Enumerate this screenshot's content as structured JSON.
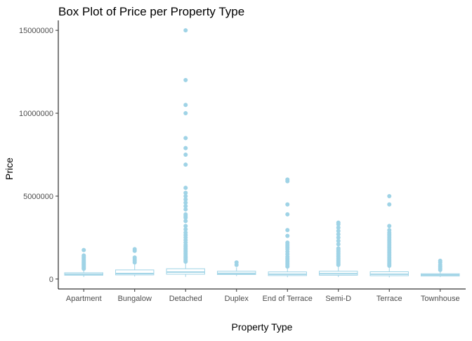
{
  "chart_data": {
    "type": "box",
    "title": "Box Plot of Price per Property Type",
    "xlabel": "Property Type",
    "ylabel": "Price",
    "ylim": [
      -600000,
      15600000
    ],
    "yticks": [
      0,
      5000000,
      10000000,
      15000000
    ],
    "ytick_labels": [
      "0",
      "5000000",
      "10000000",
      "15000000"
    ],
    "grid": false,
    "color": "#9fd3e6",
    "categories": [
      "Apartment",
      "Bungalow",
      "Detached",
      "Duplex",
      "End of Terrace",
      "Semi-D",
      "Terrace",
      "Townhouse"
    ],
    "boxes": [
      {
        "category": "Apartment",
        "whisker_low": 120000,
        "q1": 230000,
        "median": 290000,
        "q3": 380000,
        "whisker_high": 600000,
        "outliers": [
          620000,
          680000,
          740000,
          800000,
          860000,
          920000,
          980000,
          1050000,
          1120000,
          1200000,
          1280000,
          1350000,
          1420000,
          1750000
        ]
      },
      {
        "category": "Bungalow",
        "whisker_low": 150000,
        "q1": 250000,
        "median": 330000,
        "q3": 550000,
        "whisker_high": 900000,
        "outliers": [
          1000000,
          1100000,
          1200000,
          1300000,
          1700000,
          1800000
        ]
      },
      {
        "category": "Detached",
        "whisker_low": 130000,
        "q1": 290000,
        "median": 420000,
        "q3": 620000,
        "whisker_high": 1000000,
        "outliers": [
          1050000,
          1120000,
          1200000,
          1280000,
          1350000,
          1450000,
          1550000,
          1650000,
          1750000,
          1850000,
          1950000,
          2050000,
          2200000,
          2350000,
          2500000,
          2650000,
          2800000,
          3000000,
          3200000,
          3500000,
          3700000,
          3800000,
          3900000,
          4200000,
          4400000,
          4600000,
          4800000,
          5000000,
          5200000,
          5500000,
          6900000,
          7500000,
          7900000,
          8500000,
          10000000,
          10500000,
          12000000,
          15000000
        ]
      },
      {
        "category": "Duplex",
        "whisker_low": 180000,
        "q1": 270000,
        "median": 340000,
        "q3": 470000,
        "whisker_high": 700000,
        "outliers": [
          850000,
          1000000
        ]
      },
      {
        "category": "End of Terrace",
        "whisker_low": 110000,
        "q1": 210000,
        "median": 290000,
        "q3": 430000,
        "whisker_high": 700000,
        "outliers": [
          750000,
          850000,
          950000,
          1050000,
          1150000,
          1250000,
          1350000,
          1500000,
          1650000,
          1800000,
          1900000,
          2000000,
          2100000,
          2200000,
          2600000,
          2950000,
          3900000,
          4500000,
          5900000,
          6000000
        ]
      },
      {
        "category": "Semi-D",
        "whisker_low": 120000,
        "q1": 230000,
        "median": 320000,
        "q3": 470000,
        "whisker_high": 800000,
        "outliers": [
          850000,
          920000,
          1000000,
          1080000,
          1150000,
          1250000,
          1350000,
          1450000,
          1550000,
          1650000,
          1750000,
          1850000,
          2100000,
          2300000,
          2500000,
          2700000,
          2900000,
          3100000,
          3300000,
          3400000
        ]
      },
      {
        "category": "Terrace",
        "whisker_low": 100000,
        "q1": 200000,
        "median": 290000,
        "q3": 440000,
        "whisker_high": 750000,
        "outliers": [
          800000,
          880000,
          960000,
          1040000,
          1120000,
          1200000,
          1300000,
          1400000,
          1500000,
          1600000,
          1700000,
          1800000,
          1900000,
          2000000,
          2100000,
          2200000,
          2300000,
          2400000,
          2500000,
          2600000,
          2700000,
          2800000,
          2950000,
          3200000,
          4500000,
          5000000
        ]
      },
      {
        "category": "Townhouse",
        "whisker_low": 120000,
        "q1": 180000,
        "median": 250000,
        "q3": 320000,
        "whisker_high": 450000,
        "outliers": [
          550000,
          650000,
          750000,
          850000,
          1000000,
          1100000
        ]
      }
    ]
  }
}
